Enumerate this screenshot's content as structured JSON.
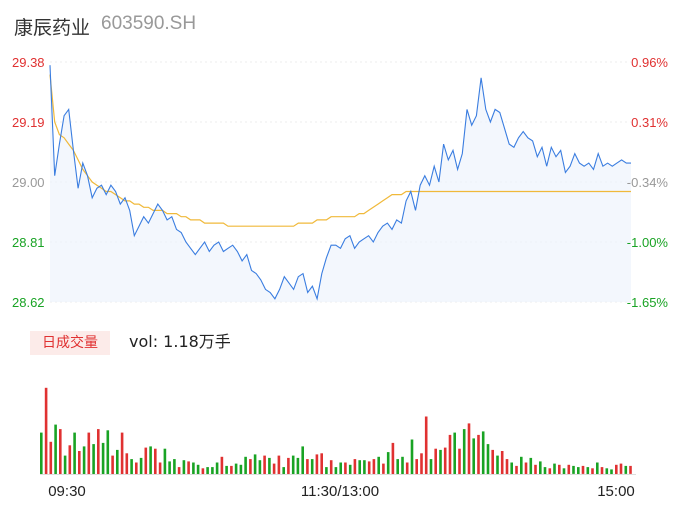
{
  "header": {
    "name": "康辰药业",
    "code": "603590.SH"
  },
  "volume_panel": {
    "badge": "日成交量",
    "vol_label": "vol: 1.18万手"
  },
  "colors": {
    "up": "#e03131",
    "down": "#19a324",
    "price_line": "#3a7de0",
    "avg_line": "#f0b93a",
    "neutral": "#999999"
  },
  "chart_data": [
    {
      "type": "line",
      "title": "",
      "y_ticks_price": [
        "29.38",
        "29.19",
        "29.00",
        "28.81",
        "28.62"
      ],
      "y_ticks_pct": [
        "0.96%",
        "0.31%",
        "-0.34%",
        "-1.00%",
        "-1.65%"
      ],
      "x_ticks": [
        "09:30",
        "11:30/13:00",
        "15:00"
      ],
      "ylim": [
        28.62,
        29.38
      ],
      "series": [
        {
          "values": [
            29.37,
            29.02,
            29.12,
            29.21,
            29.23,
            29.1,
            28.98,
            29.06,
            29.02,
            28.95,
            28.98,
            28.99,
            28.96,
            28.99,
            28.97,
            28.93,
            28.95,
            28.91,
            28.83,
            28.86,
            28.89,
            28.87,
            28.9,
            28.93,
            28.91,
            28.88,
            28.89,
            28.85,
            28.84,
            28.81,
            28.79,
            28.77,
            28.79,
            28.81,
            28.78,
            28.8,
            28.81,
            28.78,
            28.79,
            28.8,
            28.78,
            28.75,
            28.77,
            28.72,
            28.71,
            28.69,
            28.66,
            28.65,
            28.63,
            28.66,
            28.7,
            28.68,
            28.66,
            28.7,
            28.71,
            28.65,
            28.67,
            28.63,
            28.71,
            28.76,
            28.8,
            28.8,
            28.79,
            28.82,
            28.83,
            28.79,
            28.81,
            28.82,
            28.83,
            28.81,
            28.84,
            28.86,
            28.87,
            28.85,
            28.88,
            28.87,
            28.94,
            28.97,
            28.91,
            28.99,
            29.02,
            28.99,
            29.05,
            29.0,
            29.12,
            29.07,
            29.1,
            29.04,
            29.09,
            29.23,
            29.18,
            29.21,
            29.33,
            29.23,
            29.19,
            29.23,
            29.22,
            29.17,
            29.12,
            29.11,
            29.14,
            29.16,
            29.14,
            29.13,
            29.08,
            29.11,
            29.05,
            29.11,
            29.08,
            29.1,
            29.03,
            29.05,
            29.09,
            29.06,
            29.05,
            29.06,
            29.04,
            29.09,
            29.05,
            29.06,
            29.05,
            29.06,
            29.07,
            29.06,
            29.06
          ]
        },
        {
          "values": [
            29.34,
            29.19,
            29.15,
            29.14,
            29.12,
            29.1,
            29.07,
            29.04,
            29.02,
            29.0,
            28.99,
            28.98,
            28.97,
            28.97,
            28.96,
            28.95,
            28.94,
            28.94,
            28.93,
            28.93,
            28.92,
            28.92,
            28.91,
            28.91,
            28.91,
            28.9,
            28.9,
            28.9,
            28.89,
            28.89,
            28.88,
            28.88,
            28.88,
            28.87,
            28.87,
            28.87,
            28.87,
            28.87,
            28.86,
            28.86,
            28.86,
            28.86,
            28.86,
            28.86,
            28.86,
            28.86,
            28.86,
            28.86,
            28.86,
            28.86,
            28.86,
            28.86,
            28.86,
            28.87,
            28.87,
            28.87,
            28.87,
            28.88,
            28.88,
            28.88,
            28.89,
            28.89,
            28.89,
            28.89,
            28.89,
            28.89,
            28.9,
            28.9,
            28.91,
            28.92,
            28.93,
            28.94,
            28.95,
            28.96,
            28.96,
            28.96,
            28.97,
            28.97,
            28.97,
            28.97,
            28.97,
            28.97,
            28.97,
            28.97,
            28.97,
            28.97,
            28.97,
            28.97,
            28.97,
            28.97,
            28.97,
            28.97,
            28.97,
            28.97,
            28.97,
            28.97,
            28.97,
            28.97,
            28.97,
            28.97,
            28.97,
            28.97,
            28.97,
            28.97,
            28.97,
            28.97,
            28.97,
            28.97,
            28.97,
            28.97,
            28.97,
            28.97,
            28.97,
            28.97,
            28.97,
            28.97,
            28.97,
            28.97,
            28.97,
            28.97,
            28.97,
            28.97,
            28.97,
            28.97,
            28.97
          ]
        }
      ]
    },
    {
      "type": "bar",
      "title": "",
      "values": [
        3.6,
        7.5,
        2.8,
        4.3,
        3.9,
        1.6,
        2.5,
        3.6,
        2.0,
        2.4,
        3.6,
        2.6,
        3.9,
        2.7,
        3.8,
        1.6,
        2.1,
        3.6,
        1.8,
        1.3,
        1.0,
        1.4,
        2.3,
        2.4,
        2.2,
        1.0,
        2.2,
        1.1,
        1.3,
        0.6,
        1.2,
        1.1,
        1.0,
        0.8,
        0.5,
        0.6,
        0.6,
        1.0,
        1.5,
        0.7,
        0.7,
        0.9,
        0.8,
        1.5,
        1.3,
        1.7,
        1.2,
        1.6,
        1.4,
        0.9,
        1.6,
        0.6,
        1.4,
        1.6,
        1.4,
        2.4,
        1.3,
        1.3,
        1.7,
        1.8,
        0.6,
        1.2,
        0.6,
        1.0,
        1.0,
        0.8,
        1.3,
        1.2,
        1.2,
        1.1,
        1.3,
        1.5,
        0.9,
        1.9,
        2.7,
        1.3,
        1.5,
        1.0,
        3.0,
        1.3,
        1.8,
        5.0,
        1.3,
        2.2,
        2.1,
        2.3,
        3.4,
        3.6,
        2.2,
        3.9,
        4.4,
        3.1,
        3.4,
        3.7,
        2.6,
        2.1,
        1.6,
        2.0,
        1.3,
        1.0,
        0.7,
        1.5,
        1.0,
        1.4,
        0.8,
        1.1,
        0.6,
        0.5,
        0.9,
        0.8,
        0.5,
        0.8,
        0.7,
        0.6,
        0.7,
        0.6,
        0.5,
        1.0,
        0.6,
        0.5,
        0.4,
        0.8,
        0.9,
        0.7,
        0.7
      ],
      "colors_up_down": [
        "down",
        "up",
        "up",
        "down",
        "up",
        "down",
        "up",
        "down",
        "up",
        "down",
        "up",
        "down",
        "up",
        "down",
        "down",
        "up",
        "down",
        "up",
        "up",
        "down",
        "up",
        "down",
        "up",
        "down",
        "up",
        "up",
        "down",
        "down",
        "down",
        "up",
        "down",
        "up",
        "down",
        "down",
        "up",
        "down",
        "down",
        "down",
        "up",
        "down",
        "up",
        "down",
        "down",
        "down",
        "up",
        "down",
        "down",
        "up",
        "down",
        "up",
        "up",
        "down",
        "up",
        "down",
        "down",
        "down",
        "up",
        "down",
        "up",
        "up",
        "down",
        "up",
        "down",
        "down",
        "up",
        "down",
        "up",
        "down",
        "down",
        "up",
        "up",
        "down",
        "up",
        "down",
        "up",
        "down",
        "down",
        "up",
        "down",
        "up",
        "up",
        "up",
        "down",
        "up",
        "down",
        "up",
        "up",
        "down",
        "up",
        "down",
        "up",
        "down",
        "up",
        "down",
        "down",
        "up",
        "down",
        "up",
        "up",
        "down",
        "up",
        "down",
        "up",
        "down",
        "up",
        "down",
        "down",
        "up",
        "down",
        "up",
        "down",
        "up",
        "down",
        "down",
        "up",
        "down",
        "up",
        "down",
        "up",
        "down",
        "down",
        "up",
        "up",
        "down",
        "up"
      ]
    }
  ]
}
